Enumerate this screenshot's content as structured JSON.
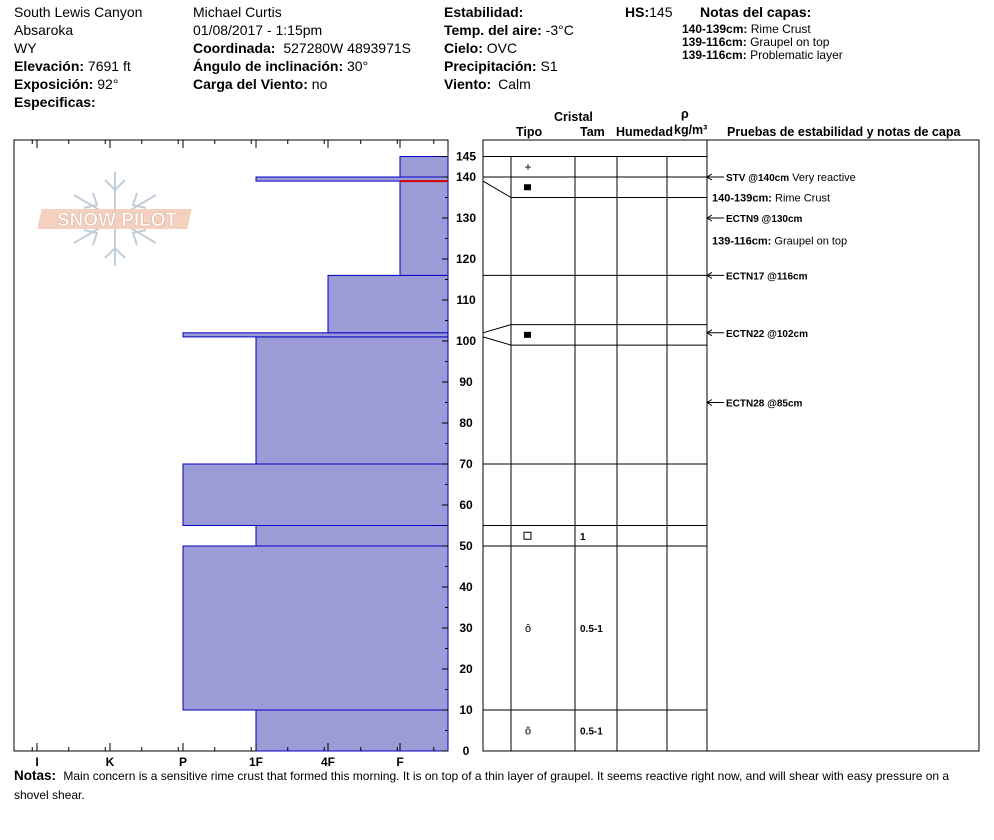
{
  "header": {
    "col1": {
      "location": "South Lewis Canyon",
      "range": "Absaroka",
      "state": "WY",
      "elevation_label": "Elevación:",
      "elevation_value": "7691 ft",
      "aspect_label": "Exposición:",
      "aspect_value": "92°",
      "specifics_label": "Especificas:"
    },
    "col2": {
      "observer": "Michael Curtis",
      "datetime": "01/08/2017 - 1:15pm",
      "coord_label": "Coordinada:",
      "coord_value": "527280W 4893971S",
      "slope_label": "Ángulo de inclinación:",
      "slope_value": "30°",
      "wind_load_label": "Carga del Viento:",
      "wind_load_value": "no"
    },
    "col3": {
      "stability_label": "Estabilidad:",
      "air_temp_label": "Temp. del aire:",
      "air_temp_value": "-3°C",
      "sky_label": "Cielo:",
      "sky_value": "OVC",
      "precip_label": "Precipitación:",
      "precip_value": "S1",
      "wind_label": "Viento:",
      "wind_value": "Calm"
    },
    "hs_label": "HS:",
    "hs_value": "145",
    "layer_notes_title": "Notas del capas:",
    "layer_notes": [
      {
        "range": "140-139cm:",
        "text": "Rime Crust"
      },
      {
        "range": "139-116cm:",
        "text": "Graupel on top"
      },
      {
        "range": "139-116cm:",
        "text": "Problematic layer"
      }
    ]
  },
  "logo": {
    "text": "SNOW PILOT"
  },
  "columns": {
    "crystal": "Cristal",
    "type": "Tipo",
    "size": "Tam",
    "moisture": "Humedad",
    "rho": "ρ",
    "density_unit": "kg/m³",
    "tests": "Pruebas de estabilidad y notas de capa"
  },
  "chart_data": {
    "type": "bar",
    "orientation": "horizontal",
    "y_axis": {
      "label": "",
      "min": 0,
      "max": 145,
      "ticks": [
        0,
        10,
        20,
        30,
        40,
        50,
        60,
        70,
        80,
        90,
        100,
        110,
        120,
        130,
        140,
        145
      ]
    },
    "x_axis": {
      "categories": [
        "I",
        "K",
        "P",
        "1F",
        "4F",
        "F"
      ]
    },
    "hardness_layers": [
      {
        "bottom": 0,
        "top": 10,
        "hardness": "1F"
      },
      {
        "bottom": 10,
        "top": 50,
        "hardness": "P"
      },
      {
        "bottom": 50,
        "top": 55,
        "hardness": "1F"
      },
      {
        "bottom": 55,
        "top": 70,
        "hardness": "P"
      },
      {
        "bottom": 70,
        "top": 101,
        "hardness": "1F"
      },
      {
        "bottom": 101,
        "top": 102,
        "hardness": "P"
      },
      {
        "bottom": 102,
        "top": 116,
        "hardness": "4F"
      },
      {
        "bottom": 116,
        "top": 139,
        "hardness": "F"
      },
      {
        "bottom": 139,
        "top": 140,
        "hardness": "1F"
      },
      {
        "bottom": 140,
        "top": 145,
        "hardness": "F"
      }
    ],
    "profile_boundaries": [
      0,
      10,
      50,
      55,
      70,
      99,
      104,
      116,
      135,
      140,
      145
    ],
    "crystals": [
      {
        "depth": 142.5,
        "symbol": "+",
        "size": ""
      },
      {
        "depth": 137.5,
        "symbol": "■",
        "size": ""
      },
      {
        "depth": 101.5,
        "symbol": "■",
        "size": ""
      },
      {
        "depth": 52.5,
        "symbol": "□",
        "size": "1"
      },
      {
        "depth": 30,
        "symbol": "ô",
        "size": "0.5-1"
      },
      {
        "depth": 5,
        "symbol": "ô",
        "size": "0.5-1"
      }
    ],
    "tests": [
      {
        "depth": 140,
        "label": "STV @140cm",
        "note": "Very reactive",
        "arrow": true
      },
      {
        "depth": 135,
        "label": "140-139cm:",
        "note": "Rime Crust",
        "arrow": false
      },
      {
        "depth": 130,
        "label": "ECTN9 @130cm",
        "note": "",
        "arrow": true
      },
      {
        "depth": 124.5,
        "label": "139-116cm:",
        "note": "Graupel on top",
        "arrow": false
      },
      {
        "depth": 116,
        "label": "ECTN17 @116cm",
        "note": "",
        "arrow": true
      },
      {
        "depth": 102,
        "label": "ECTN22 @102cm",
        "note": "",
        "arrow": true
      },
      {
        "depth": 85,
        "label": "ECTN28 @85cm",
        "note": "",
        "arrow": true
      }
    ],
    "colors": {
      "fill": "#9b9bd8",
      "stroke": "#0000c0",
      "crust": "#cc0000"
    }
  },
  "notes": {
    "label": "Notas:",
    "text": "Main concern is a sensitive rime crust that formed this morning. It is on top of a thin layer of graupel.   It seems reactive right now, and will shear with easy pressure on a shovel shear."
  }
}
